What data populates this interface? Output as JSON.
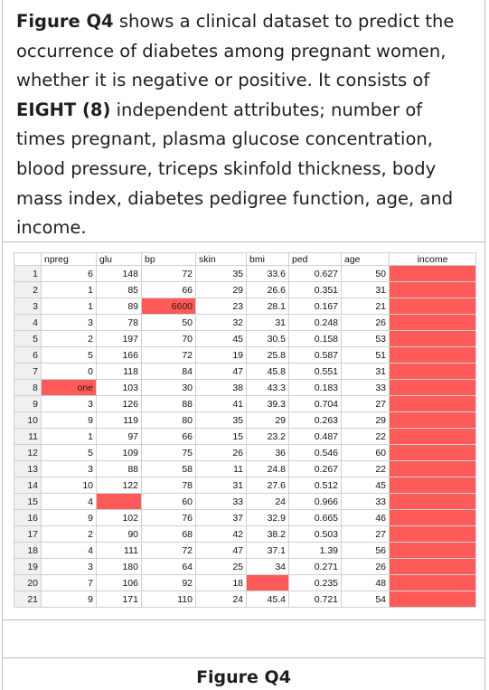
{
  "question": {
    "fig_ref": "Figure Q4",
    "t1": " shows a clinical dataset to predict the occurrence of diabetes among pregnant women, whether it is negative or positive. It consists of ",
    "bold_count": "EIGHT (8)",
    "t2": " independent attributes; number of times pregnant, plasma glucose concentration, blood pressure, triceps skinfold thickness, body mass index, diabetes pedigree function, age, and income."
  },
  "table": {
    "headers": [
      "npreg",
      "glu",
      "bp",
      "skin",
      "bmi",
      "ped",
      "age",
      "income"
    ],
    "rows": [
      {
        "n": "1",
        "npreg": "6",
        "glu": "148",
        "bp": "72",
        "skin": "35",
        "bmi": "33.6",
        "ped": "0.627",
        "age": "50",
        "income": ""
      },
      {
        "n": "2",
        "npreg": "1",
        "glu": "85",
        "bp": "66",
        "skin": "29",
        "bmi": "26.6",
        "ped": "0.351",
        "age": "31",
        "income": ""
      },
      {
        "n": "3",
        "npreg": "1",
        "glu": "89",
        "bp": "6600",
        "skin": "23",
        "bmi": "28.1",
        "ped": "0.167",
        "age": "21",
        "income": ""
      },
      {
        "n": "4",
        "npreg": "3",
        "glu": "78",
        "bp": "50",
        "skin": "32",
        "bmi": "31",
        "ped": "0.248",
        "age": "26",
        "income": ""
      },
      {
        "n": "5",
        "npreg": "2",
        "glu": "197",
        "bp": "70",
        "skin": "45",
        "bmi": "30.5",
        "ped": "0.158",
        "age": "53",
        "income": ""
      },
      {
        "n": "6",
        "npreg": "5",
        "glu": "166",
        "bp": "72",
        "skin": "19",
        "bmi": "25.8",
        "ped": "0.587",
        "age": "51",
        "income": ""
      },
      {
        "n": "7",
        "npreg": "0",
        "glu": "118",
        "bp": "84",
        "skin": "47",
        "bmi": "45.8",
        "ped": "0.551",
        "age": "31",
        "income": ""
      },
      {
        "n": "8",
        "npreg": "one",
        "glu": "103",
        "bp": "30",
        "skin": "38",
        "bmi": "43.3",
        "ped": "0.183",
        "age": "33",
        "income": ""
      },
      {
        "n": "9",
        "npreg": "3",
        "glu": "126",
        "bp": "88",
        "skin": "41",
        "bmi": "39.3",
        "ped": "0.704",
        "age": "27",
        "income": ""
      },
      {
        "n": "10",
        "npreg": "9",
        "glu": "119",
        "bp": "80",
        "skin": "35",
        "bmi": "29",
        "ped": "0.263",
        "age": "29",
        "income": ""
      },
      {
        "n": "11",
        "npreg": "1",
        "glu": "97",
        "bp": "66",
        "skin": "15",
        "bmi": "23.2",
        "ped": "0.487",
        "age": "22",
        "income": ""
      },
      {
        "n": "12",
        "npreg": "5",
        "glu": "109",
        "bp": "75",
        "skin": "26",
        "bmi": "36",
        "ped": "0.546",
        "age": "60",
        "income": ""
      },
      {
        "n": "13",
        "npreg": "3",
        "glu": "88",
        "bp": "58",
        "skin": "11",
        "bmi": "24.8",
        "ped": "0.267",
        "age": "22",
        "income": ""
      },
      {
        "n": "14",
        "npreg": "10",
        "glu": "122",
        "bp": "78",
        "skin": "31",
        "bmi": "27.6",
        "ped": "0.512",
        "age": "45",
        "income": ""
      },
      {
        "n": "15",
        "npreg": "4",
        "glu": "",
        "bp": "60",
        "skin": "33",
        "bmi": "24",
        "ped": "0.966",
        "age": "33",
        "income": ""
      },
      {
        "n": "16",
        "npreg": "9",
        "glu": "102",
        "bp": "76",
        "skin": "37",
        "bmi": "32.9",
        "ped": "0.665",
        "age": "46",
        "income": ""
      },
      {
        "n": "17",
        "npreg": "2",
        "glu": "90",
        "bp": "68",
        "skin": "42",
        "bmi": "38.2",
        "ped": "0.503",
        "age": "27",
        "income": ""
      },
      {
        "n": "18",
        "npreg": "4",
        "glu": "111",
        "bp": "72",
        "skin": "47",
        "bmi": "37.1",
        "ped": "1.39",
        "age": "56",
        "income": ""
      },
      {
        "n": "19",
        "npreg": "3",
        "glu": "180",
        "bp": "64",
        "skin": "25",
        "bmi": "34",
        "ped": "0.271",
        "age": "26",
        "income": ""
      },
      {
        "n": "20",
        "npreg": "7",
        "glu": "106",
        "bp": "92",
        "skin": "18",
        "bmi": "",
        "ped": "0.235",
        "age": "48",
        "income": ""
      },
      {
        "n": "21",
        "npreg": "9",
        "glu": "171",
        "bp": "110",
        "skin": "24",
        "bmi": "45.4",
        "ped": "0.721",
        "age": "54",
        "income": ""
      }
    ],
    "highlight_color": "#ff5a5a"
  },
  "caption": "Figure Q4"
}
